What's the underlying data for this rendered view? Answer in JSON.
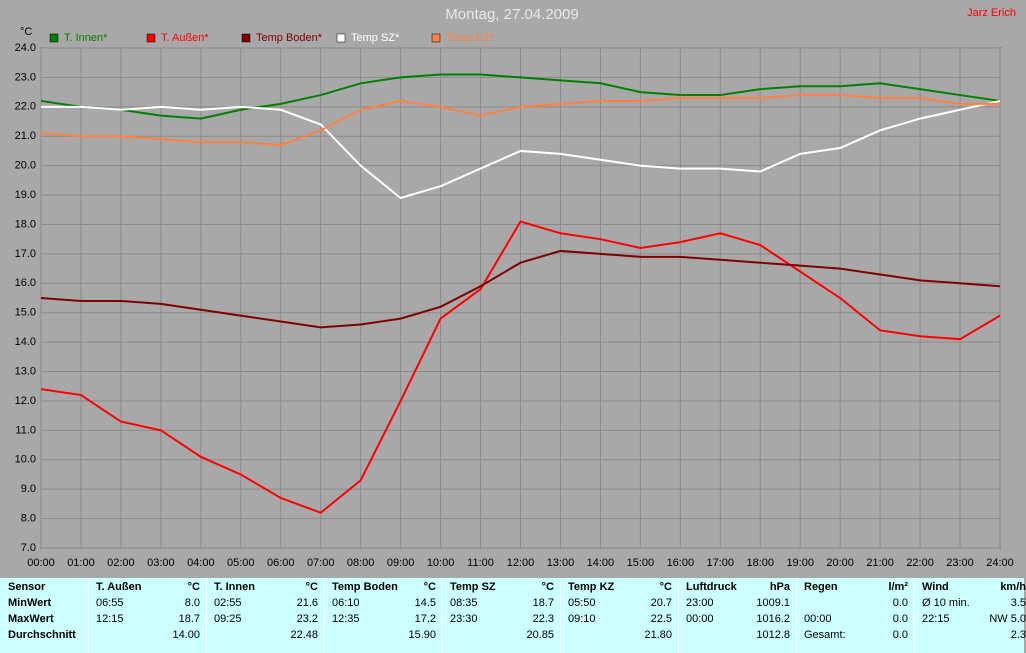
{
  "chart_data": {
    "type": "line",
    "title": "Montag, 27.04.2009",
    "author": "Jarz Erich",
    "y_label": "°C",
    "x": [
      0,
      1,
      2,
      3,
      4,
      5,
      6,
      7,
      8,
      9,
      10,
      11,
      12,
      13,
      14,
      15,
      16,
      17,
      18,
      19,
      20,
      21,
      22,
      23,
      24
    ],
    "series": [
      {
        "name": "T. Innen*",
        "color": "#008000",
        "values": [
          22.2,
          22.0,
          21.9,
          21.7,
          21.6,
          21.9,
          22.1,
          22.4,
          22.8,
          23.0,
          23.1,
          23.1,
          23.0,
          22.9,
          22.8,
          22.5,
          22.4,
          22.4,
          22.6,
          22.7,
          22.7,
          22.8,
          22.6,
          22.4,
          22.2
        ]
      },
      {
        "name": "T. Außen*",
        "color": "#ff0000",
        "values": [
          12.4,
          12.2,
          11.3,
          11.0,
          10.1,
          9.5,
          8.7,
          8.2,
          9.3,
          12.0,
          14.8,
          15.8,
          18.1,
          17.7,
          17.5,
          17.2,
          17.4,
          17.7,
          17.3,
          16.4,
          15.5,
          14.4,
          14.2,
          14.1,
          14.9
        ]
      },
      {
        "name": "Temp Boden*",
        "color": "#800000",
        "values": [
          15.5,
          15.4,
          15.4,
          15.3,
          15.1,
          14.9,
          14.7,
          14.5,
          14.6,
          14.8,
          15.2,
          15.9,
          16.7,
          17.1,
          17.0,
          16.9,
          16.9,
          16.8,
          16.7,
          16.6,
          16.5,
          16.3,
          16.1,
          16.0,
          15.9
        ]
      },
      {
        "name": "Temp SZ*",
        "color": "#ffffff",
        "values": [
          22.0,
          22.0,
          21.9,
          22.0,
          21.9,
          22.0,
          21.9,
          21.4,
          20.0,
          18.9,
          19.3,
          19.9,
          20.5,
          20.4,
          20.2,
          20.0,
          19.9,
          19.9,
          19.8,
          20.4,
          20.6,
          21.2,
          21.6,
          21.9,
          22.2
        ]
      },
      {
        "name": "Temp KZ*",
        "color": "#ff8040",
        "values": [
          21.1,
          21.0,
          21.0,
          20.9,
          20.8,
          20.8,
          20.7,
          21.2,
          21.9,
          22.2,
          22.0,
          21.7,
          22.0,
          22.1,
          22.2,
          22.2,
          22.3,
          22.3,
          22.3,
          22.4,
          22.4,
          22.3,
          22.3,
          22.1,
          22.1
        ]
      }
    ],
    "xlim": [
      0,
      24
    ],
    "xticks": [
      {
        "value": 0,
        "label": "00:00"
      },
      {
        "value": 1,
        "label": "01:00"
      },
      {
        "value": 2,
        "label": "02:00"
      },
      {
        "value": 3,
        "label": "03:00"
      },
      {
        "value": 4,
        "label": "04:00"
      },
      {
        "value": 5,
        "label": "05:00"
      },
      {
        "value": 6,
        "label": "06:00"
      },
      {
        "value": 7,
        "label": "07:00"
      },
      {
        "value": 8,
        "label": "08:00"
      },
      {
        "value": 9,
        "label": "09:00"
      },
      {
        "value": 10,
        "label": "10:00"
      },
      {
        "value": 11,
        "label": "11:00"
      },
      {
        "value": 12,
        "label": "12:00"
      },
      {
        "value": 13,
        "label": "13:00"
      },
      {
        "value": 14,
        "label": "14:00"
      },
      {
        "value": 15,
        "label": "15:00"
      },
      {
        "value": 16,
        "label": "16:00"
      },
      {
        "value": 17,
        "label": "17:00"
      },
      {
        "value": 18,
        "label": "18:00"
      },
      {
        "value": 19,
        "label": "19:00"
      },
      {
        "value": 20,
        "label": "20:00"
      },
      {
        "value": 21,
        "label": "21:00"
      },
      {
        "value": 22,
        "label": "22:00"
      },
      {
        "value": 23,
        "label": "23:00"
      },
      {
        "value": 24,
        "label": "24:00"
      }
    ],
    "ylim": [
      7,
      24
    ],
    "yticks": [
      {
        "value": 7,
        "label": "7.0"
      },
      {
        "value": 8,
        "label": "8.0"
      },
      {
        "value": 9,
        "label": "9.0"
      },
      {
        "value": 10,
        "label": "10.0"
      },
      {
        "value": 11,
        "label": "11.0"
      },
      {
        "value": 12,
        "label": "12.0"
      },
      {
        "value": 13,
        "label": "13.0"
      },
      {
        "value": 14,
        "label": "14.0"
      },
      {
        "value": 15,
        "label": "15.0"
      },
      {
        "value": 16,
        "label": "16.0"
      },
      {
        "value": 17,
        "label": "17.0"
      },
      {
        "value": 18,
        "label": "18.0"
      },
      {
        "value": 19,
        "label": "19.0"
      },
      {
        "value": 20,
        "label": "20.0"
      },
      {
        "value": 21,
        "label": "21.0"
      },
      {
        "value": 22,
        "label": "22.0"
      },
      {
        "value": 23,
        "label": "23.0"
      },
      {
        "value": 24,
        "label": "24.0"
      }
    ],
    "grid": true
  },
  "table": {
    "rows": [
      [
        "Sensor",
        "T. Außen",
        "°C",
        "T. Innen",
        "°C",
        "Temp Boden",
        "°C",
        "Temp SZ",
        "°C",
        "Temp KZ",
        "°C",
        "Luftdruck",
        "hPa",
        "Regen",
        "l/m²",
        "Wind",
        "km/h"
      ],
      [
        "MinWert",
        "06:55",
        "8.0",
        "02:55",
        "21.6",
        "06:10",
        "14.5",
        "08:35",
        "18.7",
        "05:50",
        "20.7",
        "23:00",
        "1009.1",
        null,
        "0.0",
        "Ø 10 min.",
        "3.5"
      ],
      [
        "MaxWert",
        "12:15",
        "18.7",
        "09:25",
        "23.2",
        "12:35",
        "17.2",
        "23:30",
        "22.3",
        "09:10",
        "22.5",
        "00:00",
        "1016.2",
        "00:00",
        "0.0",
        "22:15",
        "NW 5.0"
      ],
      [
        "Durchschnitt",
        null,
        "14.00",
        null,
        "22.48",
        null,
        "15.90",
        null,
        "20.85",
        null,
        "21.80",
        null,
        "1012.8",
        "Gesamt:",
        "0.0",
        null,
        "2.3"
      ]
    ]
  }
}
